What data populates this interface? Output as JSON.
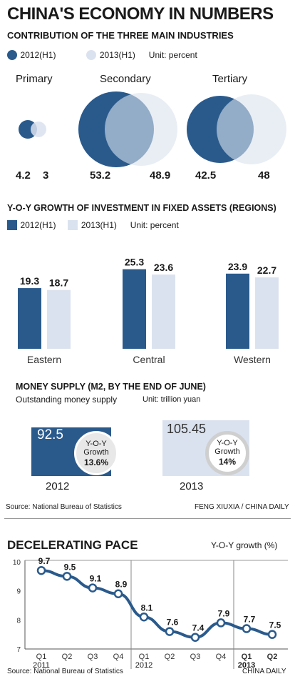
{
  "colors": {
    "dark": "#2a5a8c",
    "light": "#dbe2ef",
    "overlap": "#9fb2cf",
    "line": "#2a5a8c"
  },
  "title": "CHINA'S ECONOMY IN NUMBERS",
  "section1": {
    "title": "CONTRIBUTION OF THE THREE MAIN INDUSTRIES",
    "legend_2012": "2012(H1)",
    "legend_2013": "2013(H1)",
    "unit": "Unit: percent",
    "industries": [
      {
        "name": "Primary",
        "v2012": "4.2",
        "v2013": "3"
      },
      {
        "name": "Secondary",
        "v2012": "53.2",
        "v2013": "48.9"
      },
      {
        "name": "Tertiary",
        "v2012": "42.5",
        "v2013": "48"
      }
    ]
  },
  "section2": {
    "title": "Y-O-Y GROWTH OF INVESTMENT IN FIXED ASSETS (REGIONS)",
    "legend_2012": "2012(H1)",
    "legend_2013": "2013(H1)",
    "unit": "Unit: percent"
  },
  "section3": {
    "title": "MONEY SUPPLY (M2, BY THE END OF JUNE)",
    "subtitle": "Outstanding money supply",
    "unit": "Unit: trillion yuan",
    "years": [
      {
        "year": "2012",
        "value": "92.5",
        "growth_label": "Y-O-Y Growth",
        "growth": "13.6%"
      },
      {
        "year": "2013",
        "value": "105.45",
        "growth_label": "Y-O-Y Growth",
        "growth": "14%"
      }
    ],
    "source": "Source: National Bureau of Statistics",
    "credit": "FENG XIUXIA / CHINA DAILY"
  },
  "section4": {
    "title": "DECELERATING PACE",
    "ylabel": "Y-O-Y growth (%)",
    "source": "Source: National Bureau of Statistics",
    "credit": "CHINA DAILY"
  },
  "chart_data": [
    {
      "type": "bar",
      "title": "Y-O-Y GROWTH OF INVESTMENT IN FIXED ASSETS (REGIONS)",
      "categories": [
        "Eastern",
        "Central",
        "Western"
      ],
      "series": [
        {
          "name": "2012(H1)",
          "values": [
            19.3,
            25.3,
            23.9
          ]
        },
        {
          "name": "2013(H1)",
          "values": [
            18.7,
            23.6,
            22.7
          ]
        }
      ],
      "unit": "Unit: percent"
    },
    {
      "type": "line",
      "title": "DECELERATING PACE",
      "ylabel": "Y-O-Y growth (%)",
      "x": [
        "Q1",
        "Q2",
        "Q3",
        "Q4",
        "Q1",
        "Q2",
        "Q3",
        "Q4",
        "Q1",
        "Q2"
      ],
      "year_labels": [
        {
          "index": 0,
          "label": "2011"
        },
        {
          "index": 4,
          "label": "2012"
        },
        {
          "index": 8,
          "label": "2013"
        }
      ],
      "series": [
        {
          "values": [
            9.7,
            9.5,
            9.1,
            8.9,
            8.1,
            7.6,
            7.4,
            7.9,
            7.7,
            7.5
          ]
        }
      ],
      "ylim": [
        7,
        10
      ],
      "yticks": [
        7,
        8,
        9,
        10
      ],
      "grid": false
    }
  ]
}
